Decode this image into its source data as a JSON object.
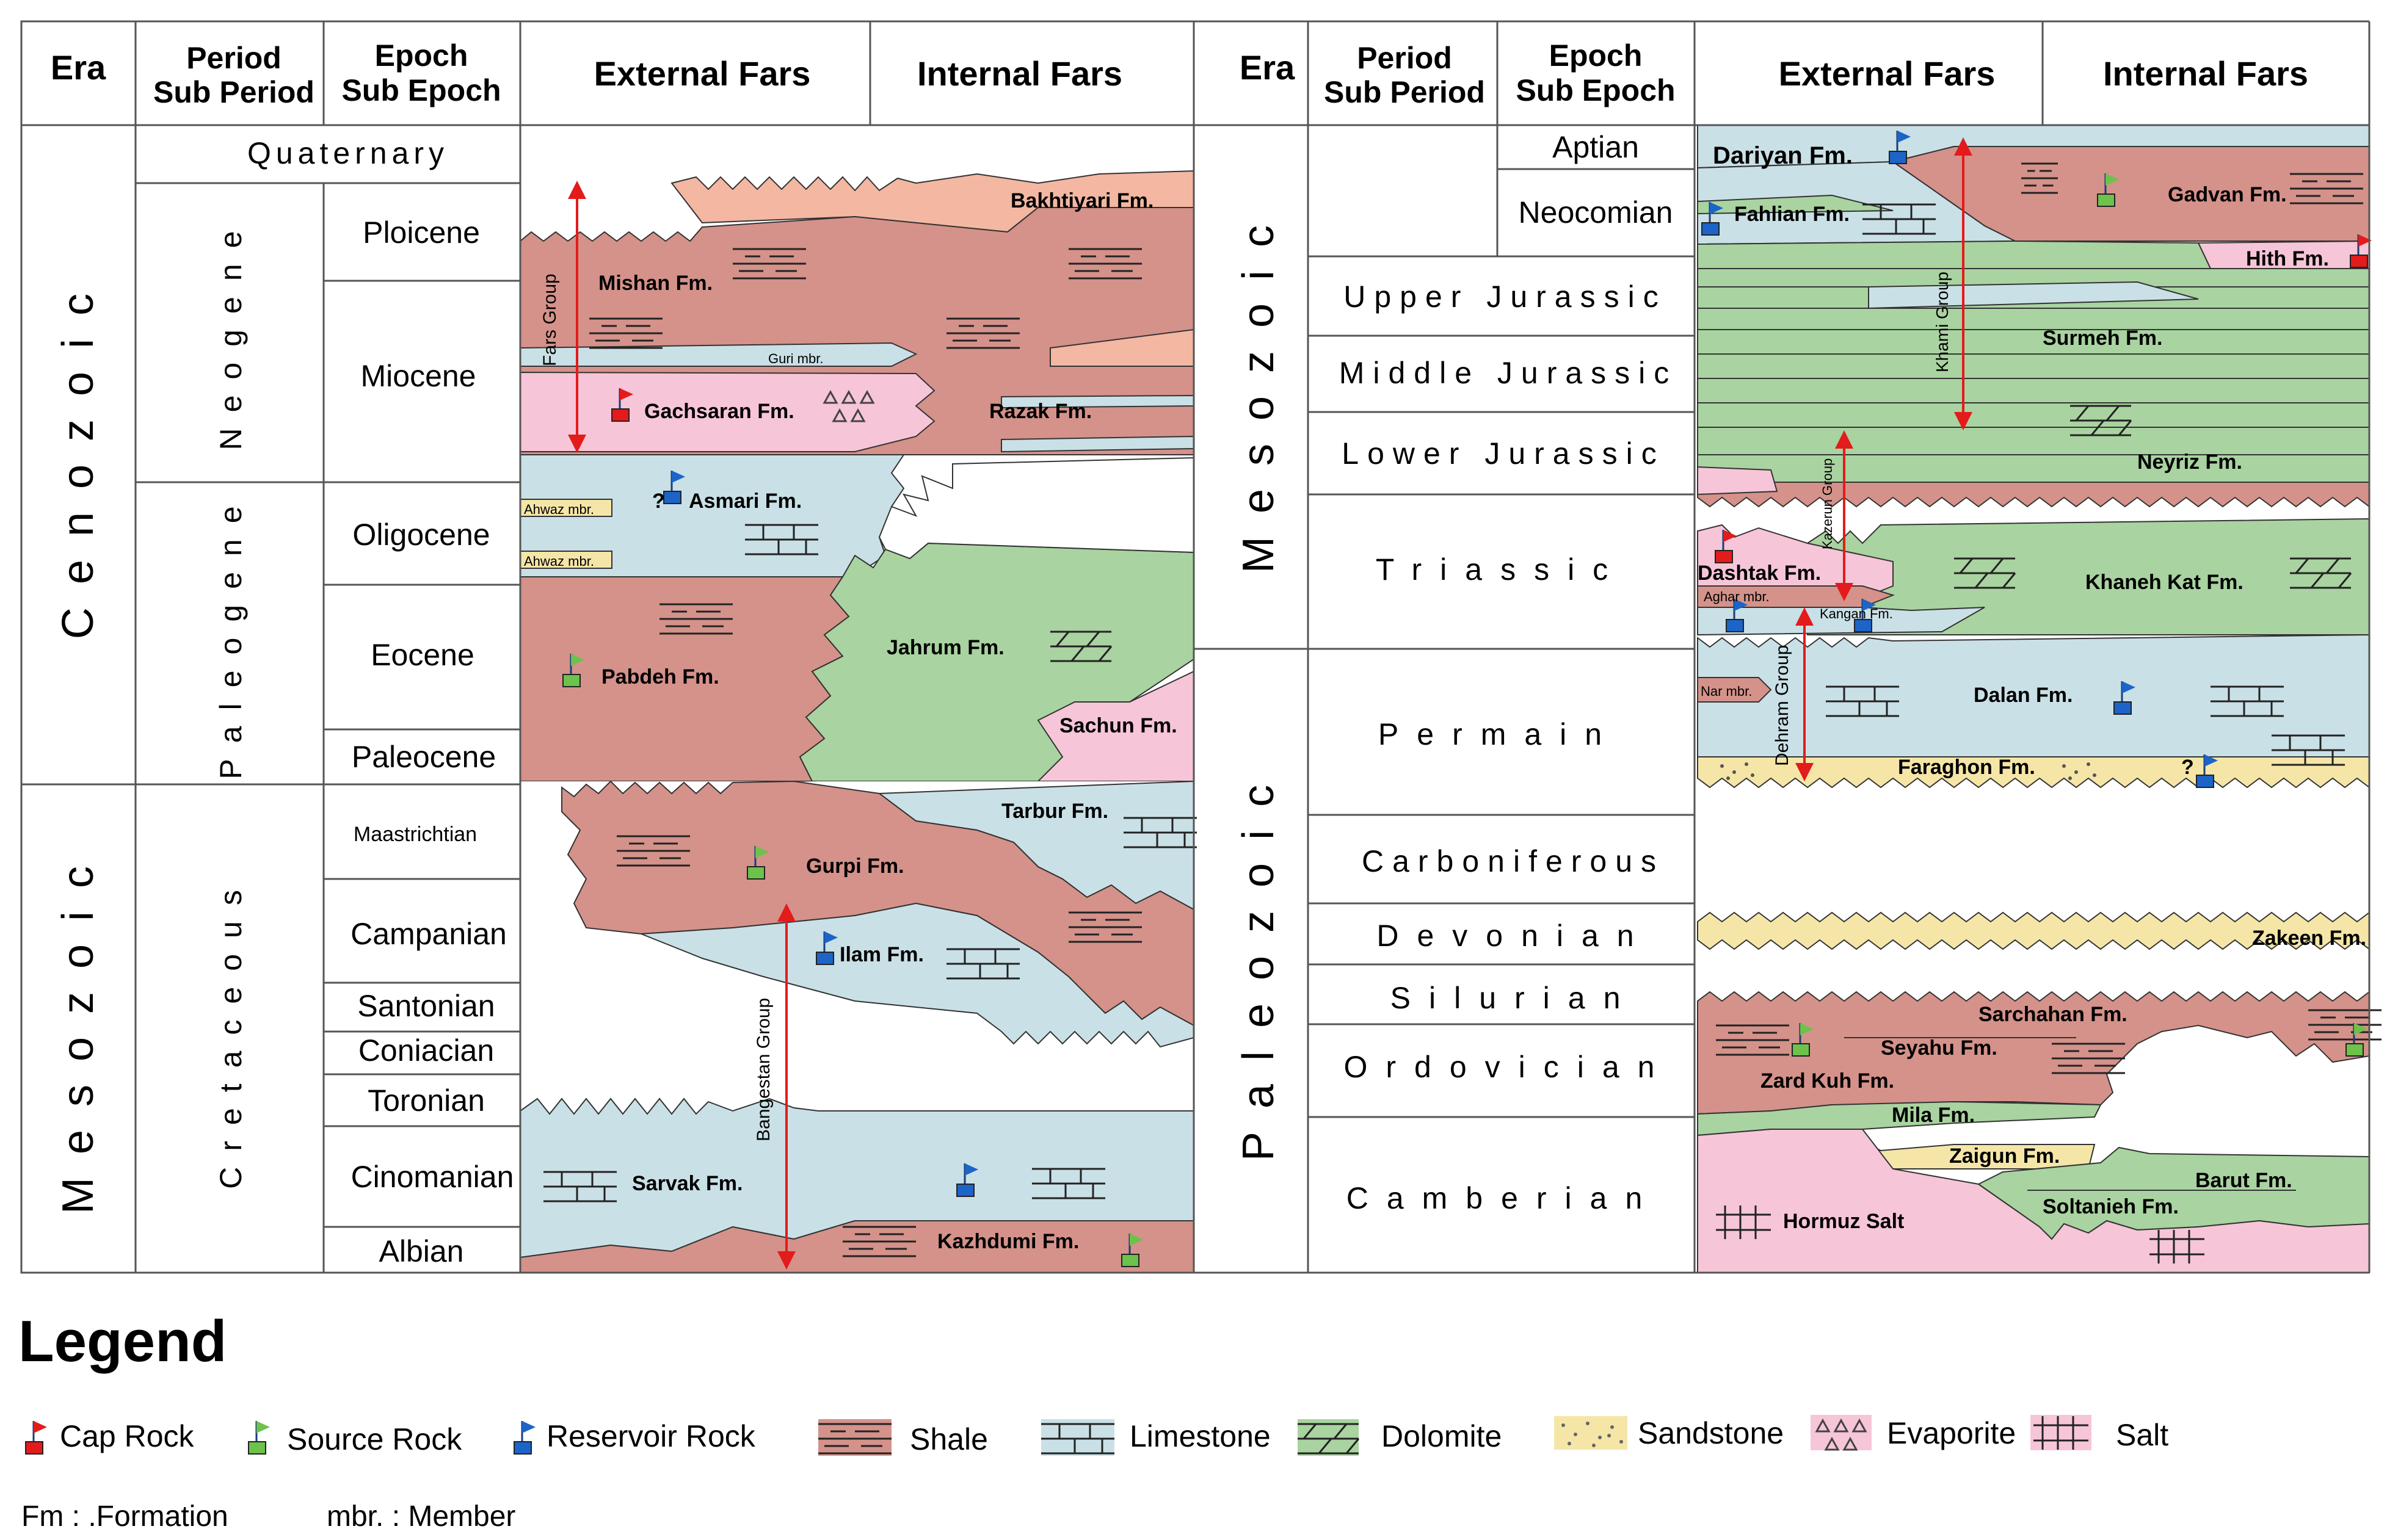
{
  "headers": {
    "era": "Era",
    "period": "Period",
    "sub_period": "Sub Period",
    "epoch": "Epoch",
    "sub_epoch": "Sub Epoch",
    "external": "External Fars",
    "internal": "Internal Fars"
  },
  "left": {
    "eras": [
      "Cenozoic",
      "Mesozoic"
    ],
    "quaternary": "Quaternary",
    "periods": [
      "Neogene",
      "Paleogene",
      "Cretaceous"
    ],
    "epochs": [
      "Ploicene",
      "Miocene",
      "Oligocene",
      "Eocene",
      "Paleocene",
      "Maastrichtian",
      "Campanian",
      "Santonian",
      "Coniacian",
      "Toronian",
      "Cinomanian",
      "Albian"
    ]
  },
  "right": {
    "eras": [
      "Mesozoic",
      "Paleozoic"
    ],
    "epochs": [
      "Aptian",
      "Neocomian"
    ],
    "periods": [
      "Upper Jurassic",
      "Middle Jurassic",
      "Lower Jurassic",
      "Triassic",
      "Permain",
      "Carboniferous",
      "Devonian",
      "Silurian",
      "Ordovician",
      "Camberian"
    ]
  },
  "formations_left": {
    "bakhtiyari": "Bakhtiyari Fm.",
    "mishan": "Mishan Fm.",
    "guri": "Guri mbr.",
    "gachsaran": "Gachsaran Fm.",
    "razak": "Razak Fm.",
    "asmari": "Asmari Fm.",
    "ahwaz1": "Ahwaz mbr.",
    "ahwaz2": "Ahwaz mbr.",
    "pabdeh": "Pabdeh Fm.",
    "jahrum": "Jahrum Fm.",
    "sachun": "Sachun Fm.",
    "tarbur": "Tarbur Fm.",
    "gurpi": "Gurpi Fm.",
    "ilam": "Ilam Fm.",
    "sarvak": "Sarvak Fm.",
    "kazhdumi": "Kazhdumi Fm.",
    "fars_group": "Fars Group",
    "bangestan_group": "Bangestan Group",
    "question": "?"
  },
  "formations_right": {
    "dariyan": "Dariyan Fm.",
    "gadvan": "Gadvan Fm.",
    "fahlian": "Fahlian Fm.",
    "hith": "Hith Fm.",
    "surmeh": "Surmeh Fm.",
    "neyriz": "Neyriz Fm.",
    "dashtak": "Dashtak Fm.",
    "aghar": "Aghar mbr.",
    "kangan": "Kangan Fm.",
    "khaneh_kat": "Khaneh Kat Fm.",
    "nar": "Nar mbr.",
    "dalan": "Dalan Fm.",
    "faraghon": "Faraghon Fm.",
    "zakeen": "Zakeen Fm.",
    "sarchahan": "Sarchahan Fm.",
    "seyahu": "Seyahu Fm.",
    "zard_kuh": "Zard Kuh Fm.",
    "mila": "Mila Fm.",
    "zaigun": "Zaigun Fm.",
    "barut": "Barut Fm.",
    "soltanieh": "Soltanieh Fm.",
    "hormuz": "Hormuz Salt",
    "khami_group": "Khami Group",
    "kazerun_group": "Kazerun Group",
    "dehram_group": "Dehram Group",
    "question": "?"
  },
  "legend": {
    "title": "Legend",
    "items": [
      "Cap Rock",
      "Source Rock",
      "Reservoir Rock",
      "Shale",
      "Limestone",
      "Dolomite",
      "Sandstone",
      "Evaporite",
      "Salt"
    ],
    "abbr_fm": "Fm : .Formation",
    "abbr_mbr": "mbr. : Member"
  },
  "colors": {
    "shale": "#d4928a",
    "limestone": "#c9e0e6",
    "dolomite": "#a9d3a0",
    "sandstone": "#f5e6a8",
    "evaporite": "#f7c5d8",
    "salt": "#f7c5d8",
    "bakhtiyari": "#f3b7a2",
    "cap_flag": "#e31b1b",
    "source_flag": "#6cc24a",
    "reservoir_flag": "#1c64c8",
    "arrow": "#e31b1b",
    "grid": "#555555"
  }
}
